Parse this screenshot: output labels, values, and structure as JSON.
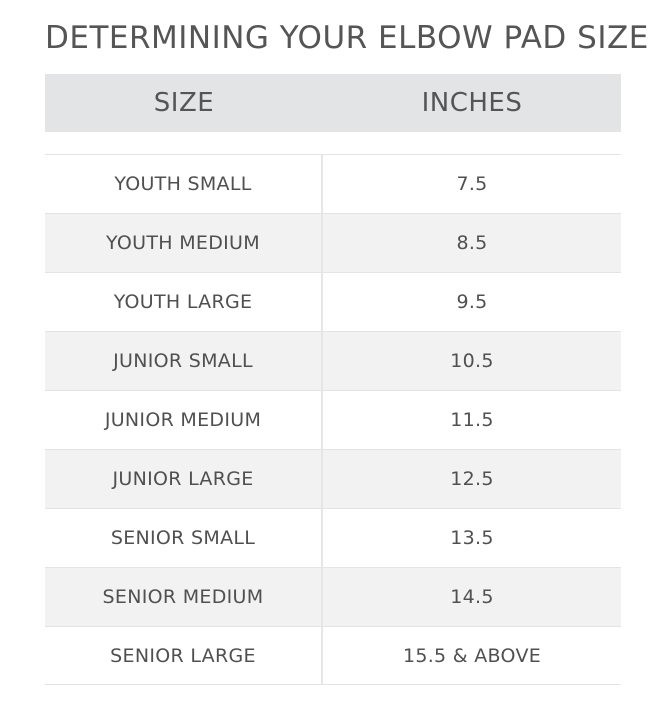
{
  "title": "DETERMINING YOUR ELBOW PAD SIZE",
  "header": {
    "size": "SIZE",
    "inches": "INCHES"
  },
  "rows": [
    {
      "size": "YOUTH SMALL",
      "inches": "7.5"
    },
    {
      "size": "YOUTH MEDIUM",
      "inches": "8.5"
    },
    {
      "size": "YOUTH LARGE",
      "inches": "9.5"
    },
    {
      "size": "JUNIOR SMALL",
      "inches": "10.5"
    },
    {
      "size": "JUNIOR MEDIUM",
      "inches": "11.5"
    },
    {
      "size": "JUNIOR LARGE",
      "inches": "12.5"
    },
    {
      "size": "SENIOR SMALL",
      "inches": "13.5"
    },
    {
      "size": "SENIOR MEDIUM",
      "inches": "14.5"
    },
    {
      "size": "SENIOR LARGE",
      "inches": "15.5 & ABOVE"
    }
  ]
}
